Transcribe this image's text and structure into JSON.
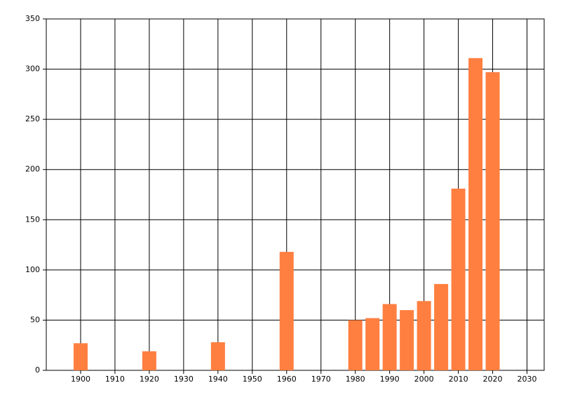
{
  "chart_data": {
    "type": "bar",
    "x": [
      1900,
      1920,
      1940,
      1960,
      1980,
      1985,
      1990,
      1995,
      2000,
      2005,
      2010,
      2015,
      2020
    ],
    "values": [
      27,
      19,
      28,
      118,
      50,
      52,
      66,
      60,
      69,
      86,
      181,
      311,
      297
    ],
    "color": "#ff7f40",
    "xlim": [
      1890,
      2035
    ],
    "xticks": [
      1900,
      1910,
      1920,
      1930,
      1940,
      1950,
      1960,
      1970,
      1980,
      1990,
      2000,
      2010,
      2020,
      2030
    ],
    "ylim": [
      0,
      350
    ],
    "yticks": [
      0,
      50,
      100,
      150,
      200,
      250,
      300,
      350
    ],
    "grid": true
  }
}
